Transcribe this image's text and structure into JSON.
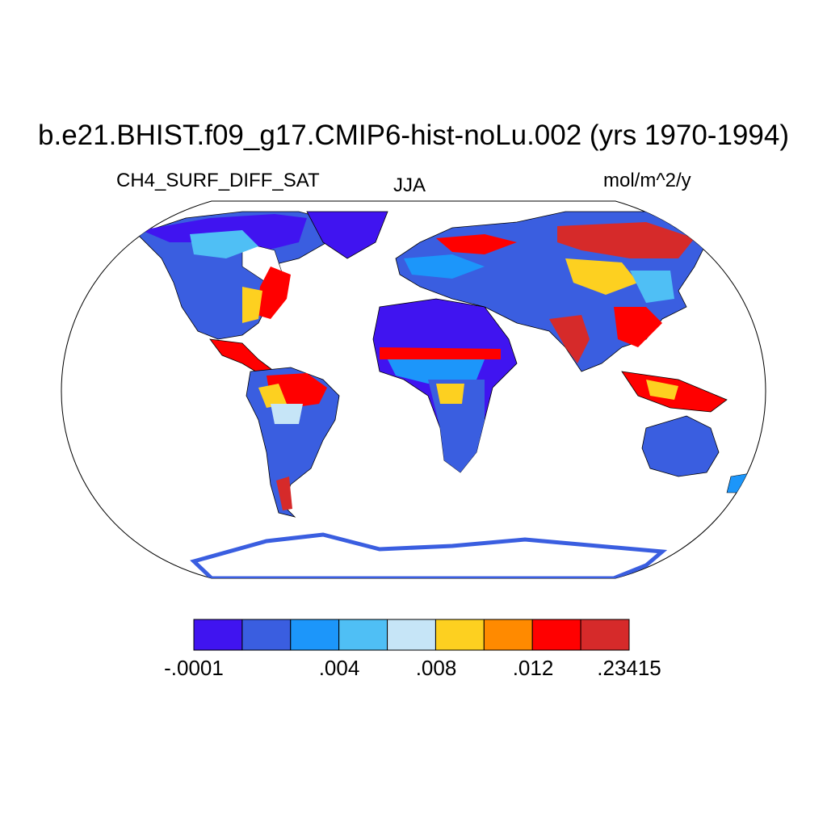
{
  "title": "b.e21.BHIST.f09_g17.CMIP6-hist-noLu.002 (yrs 1970-1994)",
  "left_string": "CH4_SURF_DIFF_SAT",
  "center_string": "JJA",
  "right_string": "mol/m^2/y",
  "projection": "Robinson",
  "colorbar": {
    "colors": [
      "#4014f0",
      "#3a5ee0",
      "#1c96fa",
      "#4fbff5",
      "#c6e5f7",
      "#fdd020",
      "#ff8a00",
      "#ff0000",
      "#d62a2a"
    ],
    "labels": [
      ".0001",
      ".004",
      ".008",
      ".012",
      ".23415"
    ],
    "label_prefix": [
      "-",
      "",
      "",
      "",
      ""
    ]
  }
}
